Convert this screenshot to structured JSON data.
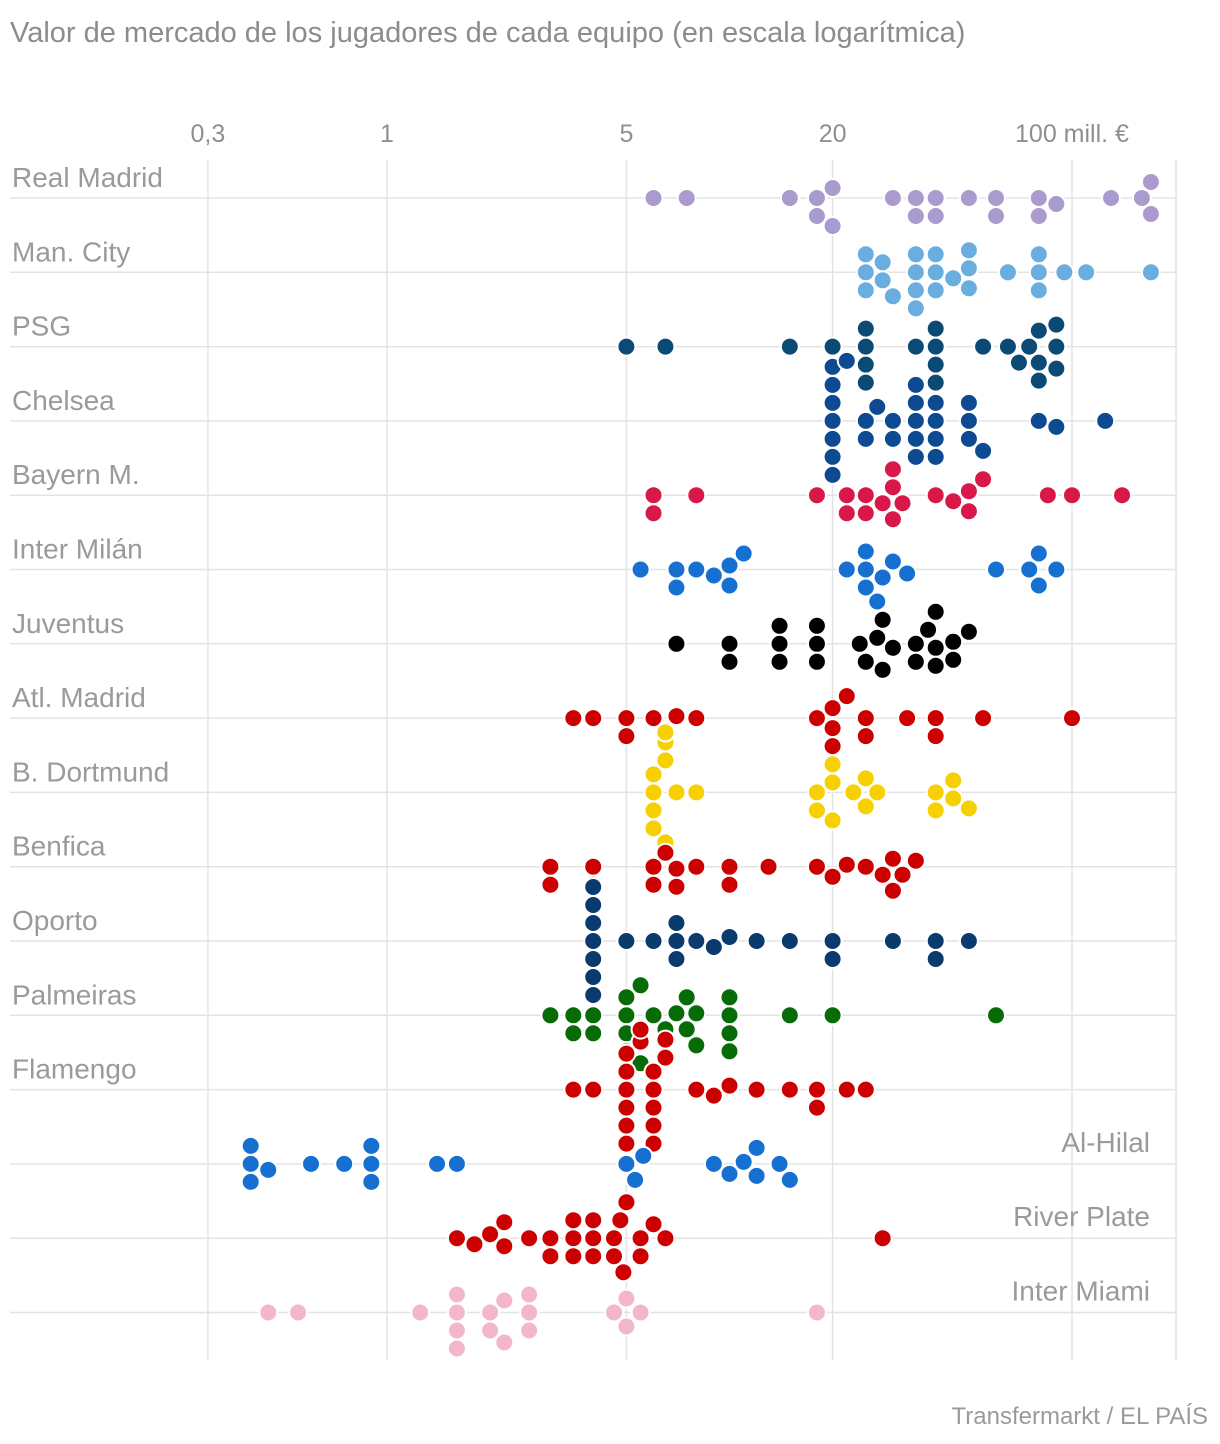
{
  "chart_data": {
    "type": "scatter",
    "title": "Valor de mercado de los jugadores de cada equipo (en escala logarítmica)",
    "source": "Transfermarkt / EL PAÍS",
    "x_scale": "log",
    "xlim": [
      0.2,
      180
    ],
    "grid": true,
    "x_ticks": [
      {
        "value": 0.3,
        "label": "0,3"
      },
      {
        "value": 1,
        "label": "1"
      },
      {
        "value": 5,
        "label": "5"
      },
      {
        "value": 20,
        "label": "20"
      },
      {
        "value": 100,
        "label": "100 mill. €"
      }
    ],
    "series": [
      {
        "name": "Real Madrid",
        "color": "#a99bcd",
        "label_side": "left",
        "values": [
          6,
          7.5,
          15,
          18,
          18,
          20,
          20,
          30,
          35,
          35,
          40,
          40,
          50,
          60,
          60,
          80,
          80,
          90,
          130,
          160,
          170,
          170
        ]
      },
      {
        "name": "Man. City",
        "color": "#6aaee0",
        "label_side": "left",
        "values": [
          25,
          25,
          25,
          28,
          28,
          30,
          35,
          35,
          35,
          35,
          40,
          40,
          40,
          45,
          50,
          50,
          50,
          65,
          80,
          80,
          80,
          95,
          110,
          170
        ]
      },
      {
        "name": "PSG",
        "color": "#0b4a75",
        "label_side": "left",
        "values": [
          5,
          6.5,
          15,
          20,
          25,
          25,
          25,
          25,
          35,
          40,
          40,
          40,
          40,
          55,
          65,
          70,
          75,
          80,
          80,
          80,
          90,
          90,
          90
        ]
      },
      {
        "name": "Chelsea",
        "color": "#0e4a92",
        "label_side": "left",
        "values": [
          20,
          20,
          20,
          20,
          20,
          20,
          20,
          22,
          25,
          25,
          27,
          30,
          30,
          35,
          35,
          35,
          35,
          35,
          40,
          40,
          40,
          40,
          50,
          50,
          50,
          55,
          80,
          90,
          125
        ]
      },
      {
        "name": "Bayern M.",
        "color": "#d9184a",
        "label_side": "left",
        "values": [
          6,
          6,
          8,
          18,
          22,
          22,
          25,
          25,
          28,
          30,
          30,
          30,
          32,
          40,
          45,
          50,
          50,
          55,
          85,
          100,
          140
        ]
      },
      {
        "name": "Inter Milán",
        "color": "#1570d1",
        "label_side": "left",
        "values": [
          5.5,
          7,
          7,
          8,
          9,
          10,
          10,
          11,
          22,
          25,
          25,
          25,
          27,
          28,
          30,
          33,
          60,
          75,
          80,
          80,
          90
        ]
      },
      {
        "name": "Juventus",
        "color": "#000000",
        "label_side": "left",
        "values": [
          7,
          10,
          10,
          14,
          14,
          14,
          18,
          18,
          18,
          24,
          25,
          27,
          28,
          28,
          30,
          35,
          35,
          38,
          40,
          40,
          40,
          45,
          45,
          50
        ]
      },
      {
        "name": "Atl. Madrid",
        "color": "#cc0000",
        "label_side": "left",
        "values": [
          3.5,
          4,
          5,
          5,
          6,
          6.5,
          7,
          8,
          18,
          20,
          20,
          20,
          22,
          25,
          25,
          33,
          40,
          40,
          55,
          100
        ]
      },
      {
        "name": "B. Dortmund",
        "color": "#f6d000",
        "label_side": "left",
        "values": [
          6,
          6,
          6,
          6,
          6.5,
          6.5,
          6.5,
          6.5,
          6.5,
          7,
          8,
          18,
          18,
          20,
          20,
          20,
          23,
          25,
          25,
          27,
          40,
          40,
          45,
          45,
          50
        ]
      },
      {
        "name": "Benfica",
        "color": "#cc0000",
        "label_side": "left",
        "values": [
          3,
          3,
          4,
          4,
          6,
          6,
          6.5,
          7,
          7,
          8,
          10,
          10,
          13,
          18,
          20,
          22,
          25,
          28,
          30,
          30,
          32,
          35
        ]
      },
      {
        "name": "Oporto",
        "color": "#0a3a6e",
        "label_side": "left",
        "values": [
          4,
          4,
          4,
          4,
          4,
          4,
          4,
          5,
          6,
          7,
          7,
          7,
          8,
          9,
          10,
          12,
          15,
          20,
          20,
          30,
          40,
          40,
          50
        ]
      },
      {
        "name": "Palmeiras",
        "color": "#076c07",
        "label_side": "left",
        "values": [
          3,
          3.5,
          3.5,
          4,
          4,
          5,
          5,
          5,
          5,
          5.5,
          5.5,
          6,
          6.5,
          7,
          7.5,
          7.5,
          8,
          8,
          10,
          10,
          10,
          10,
          15,
          20,
          60
        ]
      },
      {
        "name": "Flamengo",
        "color": "#cc0000",
        "label_side": "left",
        "values": [
          3.5,
          4,
          5,
          5,
          5,
          5,
          5,
          5,
          5.5,
          5.5,
          6,
          6,
          6,
          6,
          6,
          6.5,
          6.5,
          8,
          9,
          10,
          12,
          15,
          18,
          18,
          22,
          25
        ]
      },
      {
        "name": "Al-Hilal",
        "color": "#1570d1",
        "label_side": "right",
        "values": [
          0.4,
          0.4,
          0.4,
          0.45,
          0.6,
          0.75,
          0.9,
          0.9,
          0.9,
          1.4,
          1.6,
          5,
          5.3,
          5.6,
          9,
          10,
          11,
          12,
          12,
          14,
          15
        ]
      },
      {
        "name": "River Plate",
        "color": "#cc0000",
        "label_side": "right",
        "values": [
          1.6,
          1.8,
          2,
          2.2,
          2.2,
          2.6,
          3,
          3,
          3.5,
          3.5,
          3.5,
          4,
          4,
          4,
          4.6,
          4.6,
          4.8,
          4.9,
          5,
          5.5,
          5.5,
          6,
          6.5,
          28
        ]
      },
      {
        "name": "Inter Miami",
        "color": "#f4b6cd",
        "label_side": "right",
        "values": [
          0.45,
          0.55,
          1.25,
          1.6,
          1.6,
          1.6,
          1.6,
          2,
          2,
          2.2,
          2.2,
          2.6,
          2.6,
          2.6,
          4.6,
          5,
          5,
          5.5,
          18
        ]
      }
    ]
  }
}
